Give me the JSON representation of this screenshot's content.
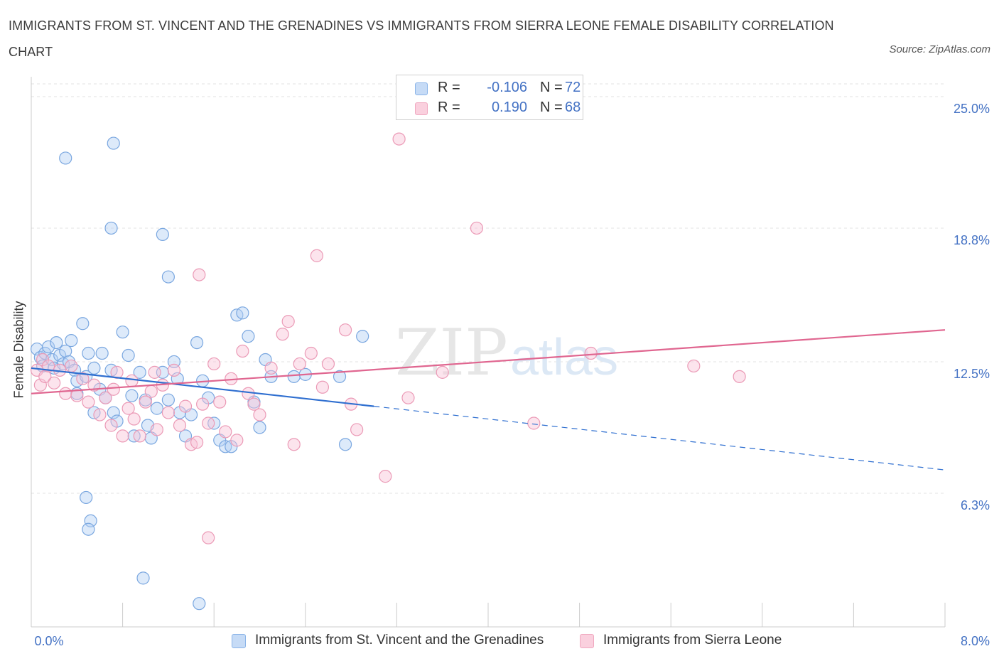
{
  "title": "IMMIGRANTS FROM ST. VINCENT AND THE GRENADINES VS IMMIGRANTS FROM SIERRA LEONE FEMALE DISABILITY CORRELATION CHART",
  "source": "Source: ZipAtlas.com",
  "watermark": {
    "zip": "ZIP",
    "atlas": "atlas"
  },
  "legend": {
    "r_label": "R =",
    "n_label": "N =",
    "rows": [
      {
        "r": "-0.106",
        "n": "72",
        "color": "#8ab4e8"
      },
      {
        "r": "0.190",
        "n": "68",
        "color": "#f0a8c0"
      }
    ]
  },
  "colors": {
    "blue": "#5b8fd6",
    "blue_line": "#2f6fd0",
    "pink": "#e8839f",
    "pink_line": "#e06690",
    "axis_text": "#4472c4"
  },
  "chart_data": {
    "type": "scatter",
    "title": "IMMIGRANTS FROM ST. VINCENT AND THE GRENADINES VS IMMIGRANTS FROM SIERRA LEONE FEMALE DISABILITY CORRELATION CHART",
    "xlabel": "",
    "ylabel": "Female Disability",
    "xlim": [
      0.0,
      8.0
    ],
    "ylim": [
      0.0,
      25.6
    ],
    "x_tick_labels": [
      "0.0%",
      "8.0%"
    ],
    "y_ticks": [
      6.3,
      12.5,
      18.8,
      25.0
    ],
    "y_tick_labels": [
      "6.3%",
      "12.5%",
      "18.8%",
      "25.0%"
    ],
    "grid": "horizontal dashed",
    "legend_position": "bottom",
    "series": [
      {
        "name": "Immigrants from St. Vincent and the Grenadines",
        "color": "#8ab4e8",
        "trend": {
          "x": [
            0.0,
            3.0
          ],
          "y": [
            12.2,
            10.4
          ],
          "dashed_extension": {
            "x": [
              3.0,
              8.0
            ],
            "y": [
              10.4,
              7.4
            ]
          }
        },
        "points": [
          [
            0.05,
            13.1
          ],
          [
            0.08,
            12.7
          ],
          [
            0.1,
            12.3
          ],
          [
            0.12,
            12.9
          ],
          [
            0.15,
            13.2
          ],
          [
            0.18,
            12.6
          ],
          [
            0.2,
            12.2
          ],
          [
            0.22,
            13.4
          ],
          [
            0.25,
            12.8
          ],
          [
            0.28,
            12.4
          ],
          [
            0.3,
            13.0
          ],
          [
            0.33,
            12.5
          ],
          [
            0.35,
            13.5
          ],
          [
            0.38,
            12.1
          ],
          [
            0.4,
            11.6
          ],
          [
            0.45,
            14.3
          ],
          [
            0.48,
            11.8
          ],
          [
            0.5,
            12.9
          ],
          [
            0.55,
            12.2
          ],
          [
            0.6,
            11.2
          ],
          [
            0.62,
            12.9
          ],
          [
            0.65,
            10.8
          ],
          [
            0.7,
            12.1
          ],
          [
            0.72,
            10.1
          ],
          [
            0.75,
            9.7
          ],
          [
            0.8,
            13.9
          ],
          [
            0.85,
            12.8
          ],
          [
            0.88,
            10.9
          ],
          [
            0.9,
            9.0
          ],
          [
            0.95,
            12.0
          ],
          [
            1.0,
            10.7
          ],
          [
            1.02,
            9.5
          ],
          [
            1.05,
            8.9
          ],
          [
            1.1,
            10.3
          ],
          [
            1.15,
            12.0
          ],
          [
            1.2,
            10.7
          ],
          [
            1.25,
            12.5
          ],
          [
            1.28,
            11.7
          ],
          [
            1.3,
            10.1
          ],
          [
            1.35,
            9.0
          ],
          [
            1.4,
            10.0
          ],
          [
            1.45,
            13.4
          ],
          [
            1.5,
            11.6
          ],
          [
            1.55,
            10.8
          ],
          [
            1.6,
            9.6
          ],
          [
            1.65,
            8.8
          ],
          [
            1.7,
            8.5
          ],
          [
            1.75,
            8.5
          ],
          [
            1.8,
            14.7
          ],
          [
            1.85,
            14.8
          ],
          [
            1.9,
            13.7
          ],
          [
            1.95,
            10.6
          ],
          [
            2.0,
            9.4
          ],
          [
            2.05,
            12.6
          ],
          [
            2.1,
            11.8
          ],
          [
            2.3,
            11.8
          ],
          [
            2.4,
            11.9
          ],
          [
            2.7,
            11.8
          ],
          [
            2.75,
            8.6
          ],
          [
            2.9,
            13.7
          ],
          [
            0.3,
            22.1
          ],
          [
            0.7,
            18.8
          ],
          [
            0.72,
            22.8
          ],
          [
            1.15,
            18.5
          ],
          [
            1.2,
            16.5
          ],
          [
            0.48,
            6.1
          ],
          [
            0.52,
            5.0
          ],
          [
            0.5,
            4.6
          ],
          [
            0.98,
            2.3
          ],
          [
            1.47,
            1.1
          ],
          [
            0.55,
            10.1
          ],
          [
            0.4,
            11.0
          ]
        ]
      },
      {
        "name": "Immigrants from Sierra Leone",
        "color": "#f0a8c0",
        "trend": {
          "x": [
            0.0,
            8.0
          ],
          "y": [
            11.0,
            14.0
          ]
        },
        "points": [
          [
            0.05,
            12.1
          ],
          [
            0.08,
            11.4
          ],
          [
            0.1,
            12.6
          ],
          [
            0.12,
            11.8
          ],
          [
            0.15,
            12.3
          ],
          [
            0.2,
            11.5
          ],
          [
            0.25,
            12.1
          ],
          [
            0.3,
            11.0
          ],
          [
            0.35,
            12.3
          ],
          [
            0.4,
            10.9
          ],
          [
            0.45,
            11.7
          ],
          [
            0.5,
            10.6
          ],
          [
            0.55,
            11.4
          ],
          [
            0.6,
            10.0
          ],
          [
            0.65,
            10.8
          ],
          [
            0.7,
            9.5
          ],
          [
            0.72,
            11.2
          ],
          [
            0.75,
            12.0
          ],
          [
            0.8,
            9.0
          ],
          [
            0.85,
            10.3
          ],
          [
            0.88,
            11.6
          ],
          [
            0.9,
            9.8
          ],
          [
            0.95,
            9.0
          ],
          [
            1.0,
            10.6
          ],
          [
            1.05,
            11.1
          ],
          [
            1.08,
            12.0
          ],
          [
            1.1,
            9.3
          ],
          [
            1.15,
            11.4
          ],
          [
            1.2,
            10.1
          ],
          [
            1.25,
            12.1
          ],
          [
            1.3,
            9.5
          ],
          [
            1.35,
            10.4
          ],
          [
            1.4,
            8.6
          ],
          [
            1.45,
            8.7
          ],
          [
            1.5,
            10.5
          ],
          [
            1.55,
            9.6
          ],
          [
            1.6,
            12.4
          ],
          [
            1.65,
            10.6
          ],
          [
            1.7,
            9.2
          ],
          [
            1.75,
            11.7
          ],
          [
            1.8,
            8.8
          ],
          [
            1.85,
            13.0
          ],
          [
            1.9,
            11.0
          ],
          [
            1.95,
            10.5
          ],
          [
            2.0,
            10.0
          ],
          [
            2.1,
            12.2
          ],
          [
            2.2,
            13.8
          ],
          [
            2.25,
            14.4
          ],
          [
            2.3,
            8.6
          ],
          [
            2.35,
            12.4
          ],
          [
            2.45,
            12.9
          ],
          [
            2.5,
            17.5
          ],
          [
            2.55,
            11.3
          ],
          [
            2.6,
            12.4
          ],
          [
            2.75,
            14.0
          ],
          [
            2.8,
            10.5
          ],
          [
            2.85,
            9.3
          ],
          [
            3.1,
            7.1
          ],
          [
            3.3,
            10.8
          ],
          [
            3.6,
            12.0
          ],
          [
            3.9,
            18.8
          ],
          [
            4.4,
            9.6
          ],
          [
            4.9,
            12.9
          ],
          [
            5.8,
            12.3
          ],
          [
            6.2,
            11.8
          ],
          [
            1.55,
            4.2
          ],
          [
            3.22,
            23.0
          ],
          [
            1.47,
            16.6
          ]
        ]
      }
    ]
  }
}
